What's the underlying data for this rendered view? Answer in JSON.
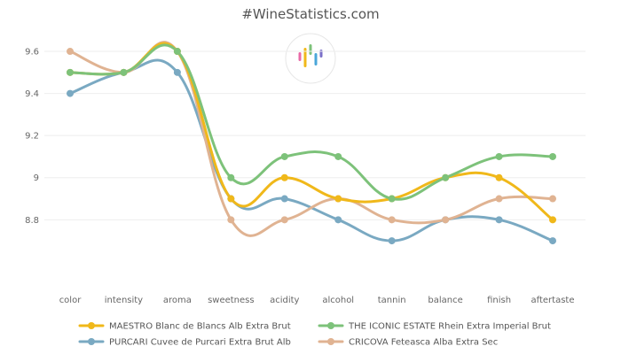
{
  "chart_data": {
    "type": "line",
    "title": "#WineStatistics.com",
    "categories": [
      "color",
      "intensity",
      "aroma",
      "sweetness",
      "acidity",
      "alcohol",
      "tannin",
      "balance",
      "finish",
      "aftertaste"
    ],
    "yticks": [
      "9.6",
      "9.4",
      "9.2",
      "9",
      "8.8"
    ],
    "ylim": [
      8.65,
      9.68
    ],
    "grid": true,
    "legend_position": "bottom",
    "series": [
      {
        "name": "MAESTRO Blanc de Blancs Alb Extra Brut",
        "color": "#f0b81a",
        "values": [
          9.5,
          9.5,
          9.6,
          8.9,
          9.0,
          8.9,
          8.9,
          9.0,
          9.0,
          8.8
        ]
      },
      {
        "name": "THE ICONIC ESTATE Rhein Extra Imperial Brut",
        "color": "#7dc27a",
        "values": [
          9.5,
          9.5,
          9.6,
          9.0,
          9.1,
          9.1,
          8.9,
          9.0,
          9.1,
          9.1
        ]
      },
      {
        "name": "PURCARI Cuvee de Purcari Extra Brut Alb",
        "color": "#7aa9c2",
        "values": [
          9.4,
          9.5,
          9.5,
          8.9,
          8.9,
          8.8,
          8.7,
          8.8,
          8.8,
          8.7
        ]
      },
      {
        "name": "CRICOVA Feteasca Alba Extra Sec",
        "color": "#e0b392",
        "values": [
          9.6,
          9.5,
          9.6,
          8.8,
          8.8,
          8.9,
          8.8,
          8.8,
          8.9,
          8.9
        ]
      }
    ]
  },
  "logo": {
    "name": "logo-icon",
    "colors": [
      "#e96aa7",
      "#f0b81a",
      "#7dc27a",
      "#4aa6d9",
      "#7a6fc8"
    ]
  }
}
